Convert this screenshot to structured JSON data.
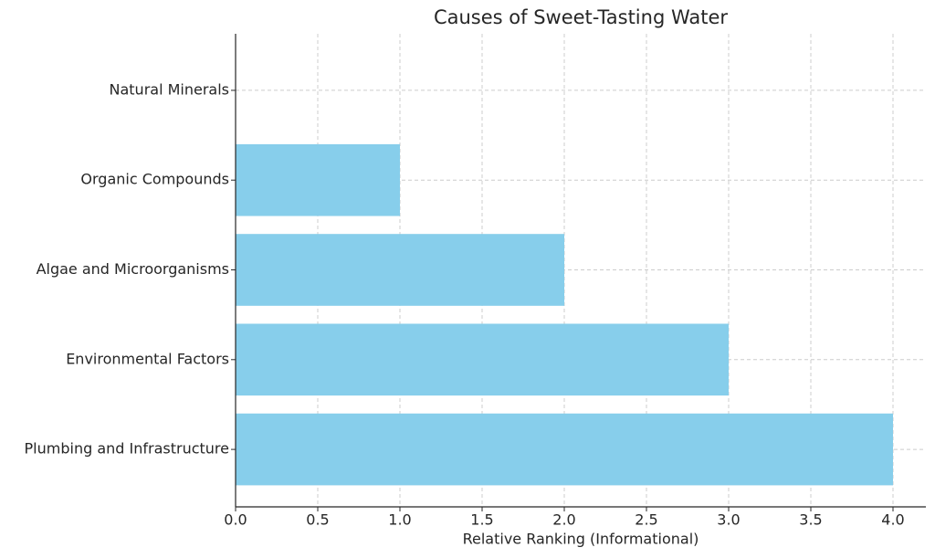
{
  "chart_data": {
    "type": "hbar",
    "title": "Causes of Sweet-Tasting Water",
    "xlabel": "Relative Ranking (Informational)",
    "categories": [
      "Plumbing and Infrastructure",
      "Environmental Factors",
      "Algae and Microorganisms",
      "Organic Compounds",
      "Natural Minerals"
    ],
    "values": [
      4,
      3,
      2,
      1,
      0
    ],
    "color": "#87ceeb",
    "xlim": [
      0,
      4.2
    ],
    "xticks": [
      {
        "value": 0,
        "label": "0.0"
      },
      0.5,
      {
        "value": 1,
        "label": "1.0"
      },
      1.5,
      {
        "value": 2,
        "label": "2.0"
      },
      2.5,
      {
        "value": 3,
        "label": "3.0"
      },
      3.5,
      {
        "value": 4,
        "label": "4.0"
      }
    ],
    "grid": true
  }
}
